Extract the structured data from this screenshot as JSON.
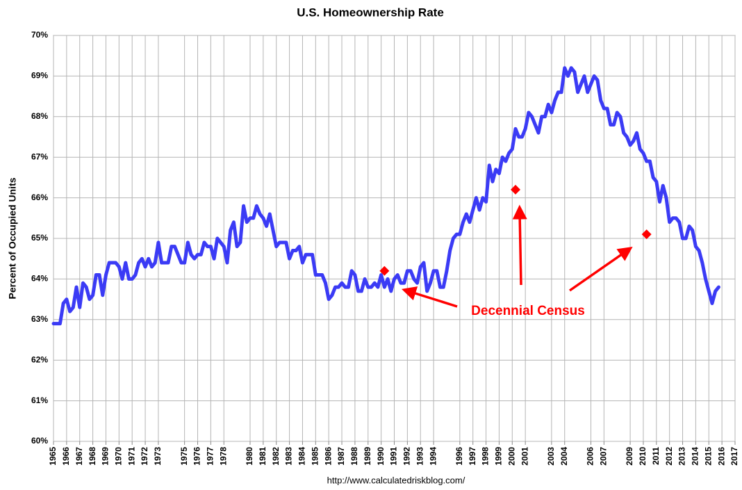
{
  "chart_data": {
    "type": "line",
    "title": "U.S. Homeownership Rate",
    "y_label": "Percent of Occupied Units",
    "source": "http://www.calculatedriskblog.com/",
    "annotation": "Decennial Census",
    "xlim": [
      1965,
      2017
    ],
    "xticks": [
      1965,
      1966,
      1967,
      1968,
      1969,
      1970,
      1971,
      1972,
      1973,
      1975,
      1976,
      1977,
      1978,
      1980,
      1981,
      1982,
      1983,
      1984,
      1985,
      1986,
      1987,
      1988,
      1989,
      1990,
      1991,
      1992,
      1993,
      1994,
      1996,
      1997,
      1998,
      1999,
      2000,
      2001,
      2003,
      2004,
      2006,
      2007,
      2009,
      2010,
      2011,
      2012,
      2013,
      2014,
      2015,
      2016,
      2017
    ],
    "ylim": [
      60,
      70
    ],
    "yticks": [
      {
        "value": 60,
        "label": "60%"
      },
      {
        "value": 61,
        "label": "61%"
      },
      {
        "value": 62,
        "label": "62%"
      },
      {
        "value": 63,
        "label": "63%"
      },
      {
        "value": 64,
        "label": "64%"
      },
      {
        "value": 65,
        "label": "65%"
      },
      {
        "value": 66,
        "label": "66%"
      },
      {
        "value": 67,
        "label": "67%"
      },
      {
        "value": 68,
        "label": "68%"
      },
      {
        "value": 69,
        "label": "69%"
      },
      {
        "value": 70,
        "label": "70%"
      }
    ],
    "grid": true,
    "series": [
      {
        "type": "line",
        "color": "#3b3bf5",
        "x": [
          1965,
          1965.25,
          1965.5,
          1965.75,
          1966,
          1966.25,
          1966.5,
          1966.75,
          1967,
          1967.25,
          1967.5,
          1967.75,
          1968,
          1968.25,
          1968.5,
          1968.75,
          1969,
          1969.25,
          1969.5,
          1969.75,
          1970,
          1970.25,
          1970.5,
          1970.75,
          1971,
          1971.25,
          1971.5,
          1971.75,
          1972,
          1972.25,
          1972.5,
          1972.75,
          1973,
          1973.25,
          1973.5,
          1973.75,
          1974,
          1974.25,
          1974.5,
          1974.75,
          1975,
          1975.25,
          1975.5,
          1975.75,
          1976,
          1976.25,
          1976.5,
          1976.75,
          1977,
          1977.25,
          1977.5,
          1977.75,
          1978,
          1978.25,
          1978.5,
          1978.75,
          1979,
          1979.25,
          1979.5,
          1979.75,
          1980,
          1980.25,
          1980.5,
          1980.75,
          1981,
          1981.25,
          1981.5,
          1981.75,
          1982,
          1982.25,
          1982.5,
          1982.75,
          1983,
          1983.25,
          1983.5,
          1983.75,
          1984,
          1984.25,
          1984.5,
          1984.75,
          1985,
          1985.25,
          1985.5,
          1985.75,
          1986,
          1986.25,
          1986.5,
          1986.75,
          1987,
          1987.25,
          1987.5,
          1987.75,
          1988,
          1988.25,
          1988.5,
          1988.75,
          1989,
          1989.25,
          1989.5,
          1989.75,
          1990,
          1990.25,
          1990.5,
          1990.75,
          1991,
          1991.25,
          1991.5,
          1991.75,
          1992,
          1992.25,
          1992.5,
          1992.75,
          1993,
          1993.25,
          1993.5,
          1993.75,
          1994,
          1994.25,
          1994.5,
          1994.75,
          1995,
          1995.25,
          1995.5,
          1995.75,
          1996,
          1996.25,
          1996.5,
          1996.75,
          1997,
          1997.25,
          1997.5,
          1997.75,
          1998,
          1998.25,
          1998.5,
          1998.75,
          1999,
          1999.25,
          1999.5,
          1999.75,
          2000,
          2000.25,
          2000.5,
          2000.75,
          2001,
          2001.25,
          2001.5,
          2001.75,
          2002,
          2002.25,
          2002.5,
          2002.75,
          2003,
          2003.25,
          2003.5,
          2003.75,
          2004,
          2004.25,
          2004.5,
          2004.75,
          2005,
          2005.25,
          2005.5,
          2005.75,
          2006,
          2006.25,
          2006.5,
          2006.75,
          2007,
          2007.25,
          2007.5,
          2007.75,
          2008,
          2008.25,
          2008.5,
          2008.75,
          2009,
          2009.25,
          2009.5,
          2009.75,
          2010,
          2010.25,
          2010.5,
          2010.75,
          2011,
          2011.25,
          2011.5,
          2011.75,
          2012,
          2012.25,
          2012.5,
          2012.75,
          2013,
          2013.25,
          2013.5,
          2013.75,
          2014,
          2014.25,
          2014.5,
          2014.75,
          2015,
          2015.25,
          2015.5,
          2015.75
        ],
        "values": [
          62.9,
          62.9,
          62.9,
          63.4,
          63.5,
          63.2,
          63.3,
          63.8,
          63.3,
          63.9,
          63.8,
          63.5,
          63.6,
          64.1,
          64.1,
          63.6,
          64.1,
          64.4,
          64.4,
          64.4,
          64.3,
          64.0,
          64.4,
          64.0,
          64.0,
          64.1,
          64.4,
          64.5,
          64.3,
          64.5,
          64.3,
          64.4,
          64.9,
          64.4,
          64.4,
          64.4,
          64.8,
          64.8,
          64.6,
          64.4,
          64.4,
          64.9,
          64.6,
          64.5,
          64.6,
          64.6,
          64.9,
          64.8,
          64.8,
          64.5,
          65.0,
          64.9,
          64.8,
          64.4,
          65.2,
          65.4,
          64.8,
          64.9,
          65.8,
          65.4,
          65.5,
          65.5,
          65.8,
          65.6,
          65.5,
          65.3,
          65.6,
          65.2,
          64.8,
          64.9,
          64.9,
          64.9,
          64.5,
          64.7,
          64.7,
          64.8,
          64.4,
          64.6,
          64.6,
          64.6,
          64.1,
          64.1,
          64.1,
          63.9,
          63.5,
          63.6,
          63.8,
          63.8,
          63.9,
          63.8,
          63.8,
          64.2,
          64.1,
          63.7,
          63.7,
          64.0,
          63.8,
          63.8,
          63.9,
          63.8,
          64.1,
          63.8,
          64.0,
          63.7,
          64.0,
          64.1,
          63.9,
          63.9,
          64.2,
          64.2,
          64.0,
          63.9,
          64.3,
          64.4,
          63.7,
          63.9,
          64.2,
          64.2,
          63.8,
          63.8,
          64.2,
          64.7,
          65.0,
          65.1,
          65.1,
          65.4,
          65.6,
          65.4,
          65.7,
          66.0,
          65.7,
          66.0,
          65.9,
          66.8,
          66.4,
          66.7,
          66.6,
          67.0,
          66.9,
          67.1,
          67.2,
          67.7,
          67.5,
          67.5,
          67.7,
          68.1,
          68.0,
          67.8,
          67.6,
          68.0,
          68.0,
          68.3,
          68.1,
          68.4,
          68.6,
          68.6,
          69.2,
          69.0,
          69.2,
          69.1,
          68.6,
          68.8,
          69.0,
          68.6,
          68.8,
          69.0,
          68.9,
          68.4,
          68.2,
          68.2,
          67.8,
          67.8,
          68.1,
          68.0,
          67.6,
          67.5,
          67.3,
          67.4,
          67.6,
          67.2,
          67.1,
          66.9,
          66.9,
          66.5,
          66.4,
          65.9,
          66.3,
          66.0,
          65.4,
          65.5,
          65.5,
          65.4,
          65.0,
          65.0,
          65.3,
          65.2,
          64.8,
          64.7,
          64.4,
          64.0,
          63.7,
          63.4,
          63.7,
          63.8
        ]
      },
      {
        "type": "scatter",
        "color": "#ff0000",
        "x": [
          1990.25,
          2000.25,
          2010.25
        ],
        "values": [
          64.2,
          66.2,
          65.1
        ]
      }
    ]
  }
}
